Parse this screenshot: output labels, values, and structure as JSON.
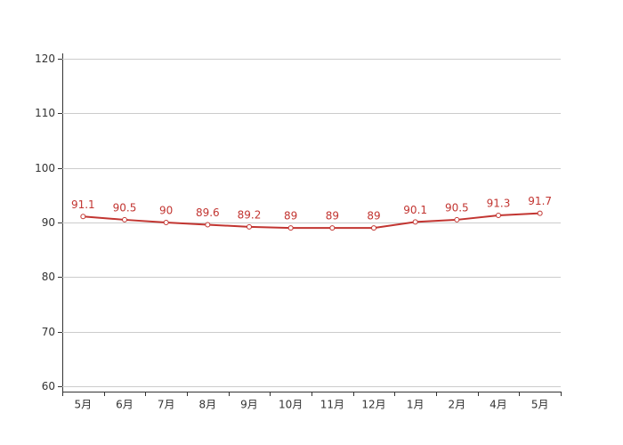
{
  "chart_data": {
    "type": "line",
    "categories": [
      "5月",
      "6月",
      "7月",
      "8月",
      "9月",
      "10月",
      "11月",
      "12月",
      "1月",
      "2月",
      "4月",
      "5月"
    ],
    "values": [
      91.1,
      90.5,
      90,
      89.6,
      89.2,
      89,
      89,
      89,
      90.1,
      90.5,
      91.3,
      91.7
    ],
    "color": "#c23531",
    "ylim": [
      59,
      121
    ],
    "yticks": [
      60,
      70,
      80,
      90,
      100,
      110,
      120
    ],
    "grid": true
  }
}
